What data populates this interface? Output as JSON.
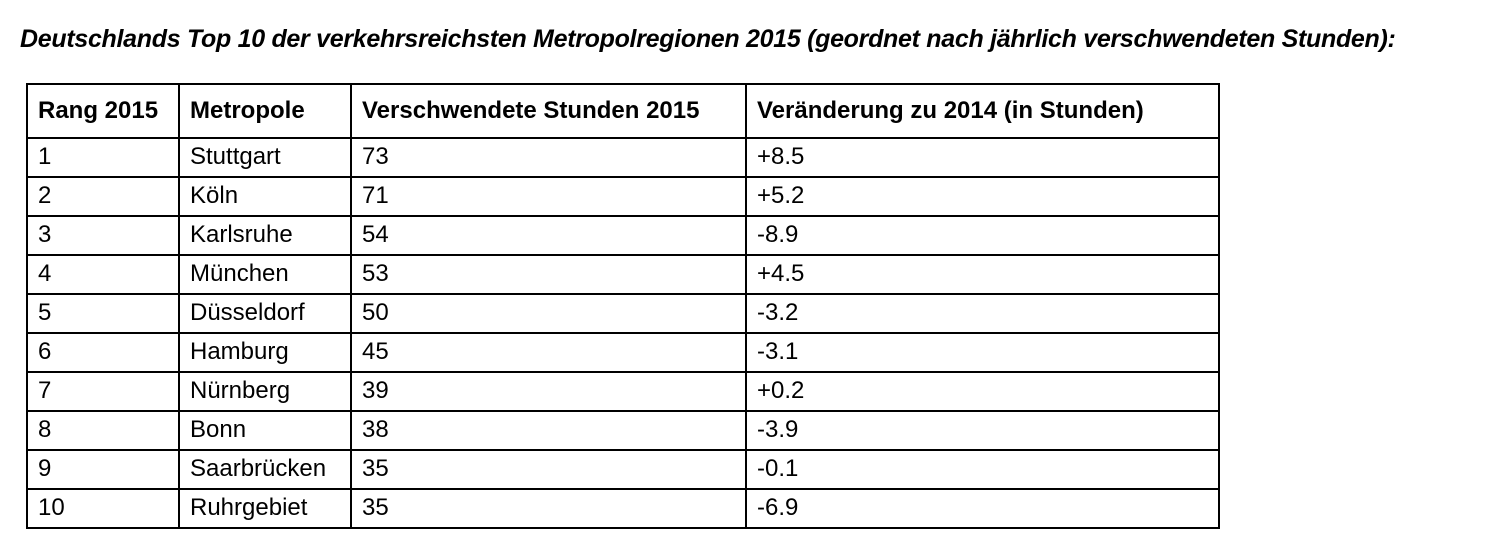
{
  "title": "Deutschlands Top 10 der verkehrsreichsten Metropolregionen 2015 (geordnet nach jährlich verschwendeten Stunden):",
  "table": {
    "headers": [
      "Rang 2015",
      "Metropole",
      "Verschwendete Stunden 2015",
      "Veränderung zu 2014 (in Stunden)"
    ],
    "rows": [
      [
        "1",
        "Stuttgart",
        "73",
        "+8.5"
      ],
      [
        "2",
        "Köln",
        "71",
        "+5.2"
      ],
      [
        "3",
        "Karlsruhe",
        "54",
        "-8.9"
      ],
      [
        "4",
        "München",
        "53",
        "+4.5"
      ],
      [
        "5",
        "Düsseldorf",
        "50",
        "-3.2"
      ],
      [
        "6",
        "Hamburg",
        "45",
        "-3.1"
      ],
      [
        "7",
        "Nürnberg",
        "39",
        "+0.2"
      ],
      [
        "8",
        "Bonn",
        "38",
        "-3.9"
      ],
      [
        "9",
        "Saarbrücken",
        "35",
        "-0.1"
      ],
      [
        "10",
        "Ruhrgebiet",
        "35",
        "-6.9"
      ]
    ]
  },
  "colors": {
    "text": "#000000",
    "border": "#000000",
    "background": "#ffffff"
  }
}
